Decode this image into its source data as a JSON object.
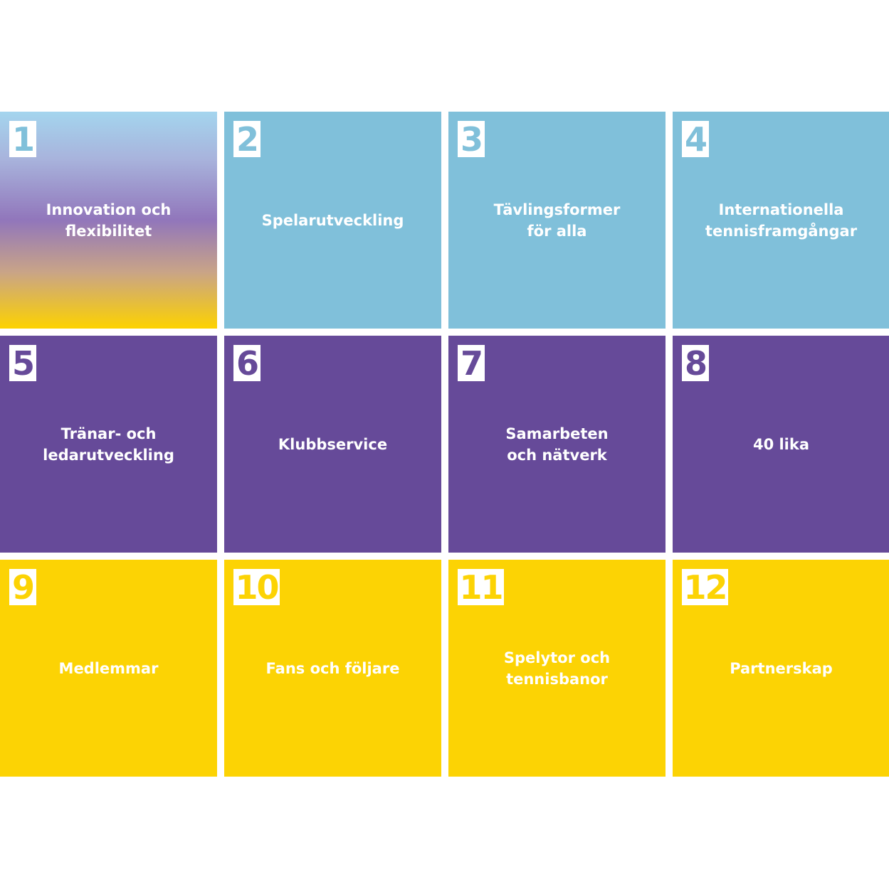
{
  "colors": {
    "blue": "#80c0da",
    "purple": "#664a99",
    "yellow": "#fcd304",
    "background": "#ffffff"
  },
  "tiles": [
    {
      "number": "1",
      "label": "Innovation och\nflexibilitet",
      "color": "gradient"
    },
    {
      "number": "2",
      "label": "Spelarutveckling",
      "color": "blue"
    },
    {
      "number": "3",
      "label": "Tävlingsformer\nför alla",
      "color": "blue"
    },
    {
      "number": "4",
      "label": "Internationella\ntennisframgångar",
      "color": "blue"
    },
    {
      "number": "5",
      "label": "Tränar- och\nledarutveckling",
      "color": "purple"
    },
    {
      "number": "6",
      "label": "Klubbservice",
      "color": "purple"
    },
    {
      "number": "7",
      "label": "Samarbeten\noch nätverk",
      "color": "purple"
    },
    {
      "number": "8",
      "label": "40 lika",
      "color": "purple"
    },
    {
      "number": "9",
      "label": "Medlemmar",
      "color": "yellow"
    },
    {
      "number": "10",
      "label": "Fans och följare",
      "color": "yellow"
    },
    {
      "number": "11",
      "label": "Spelytor och\ntennisbanor",
      "color": "yellow"
    },
    {
      "number": "12",
      "label": "Partnerskap",
      "color": "yellow"
    }
  ]
}
